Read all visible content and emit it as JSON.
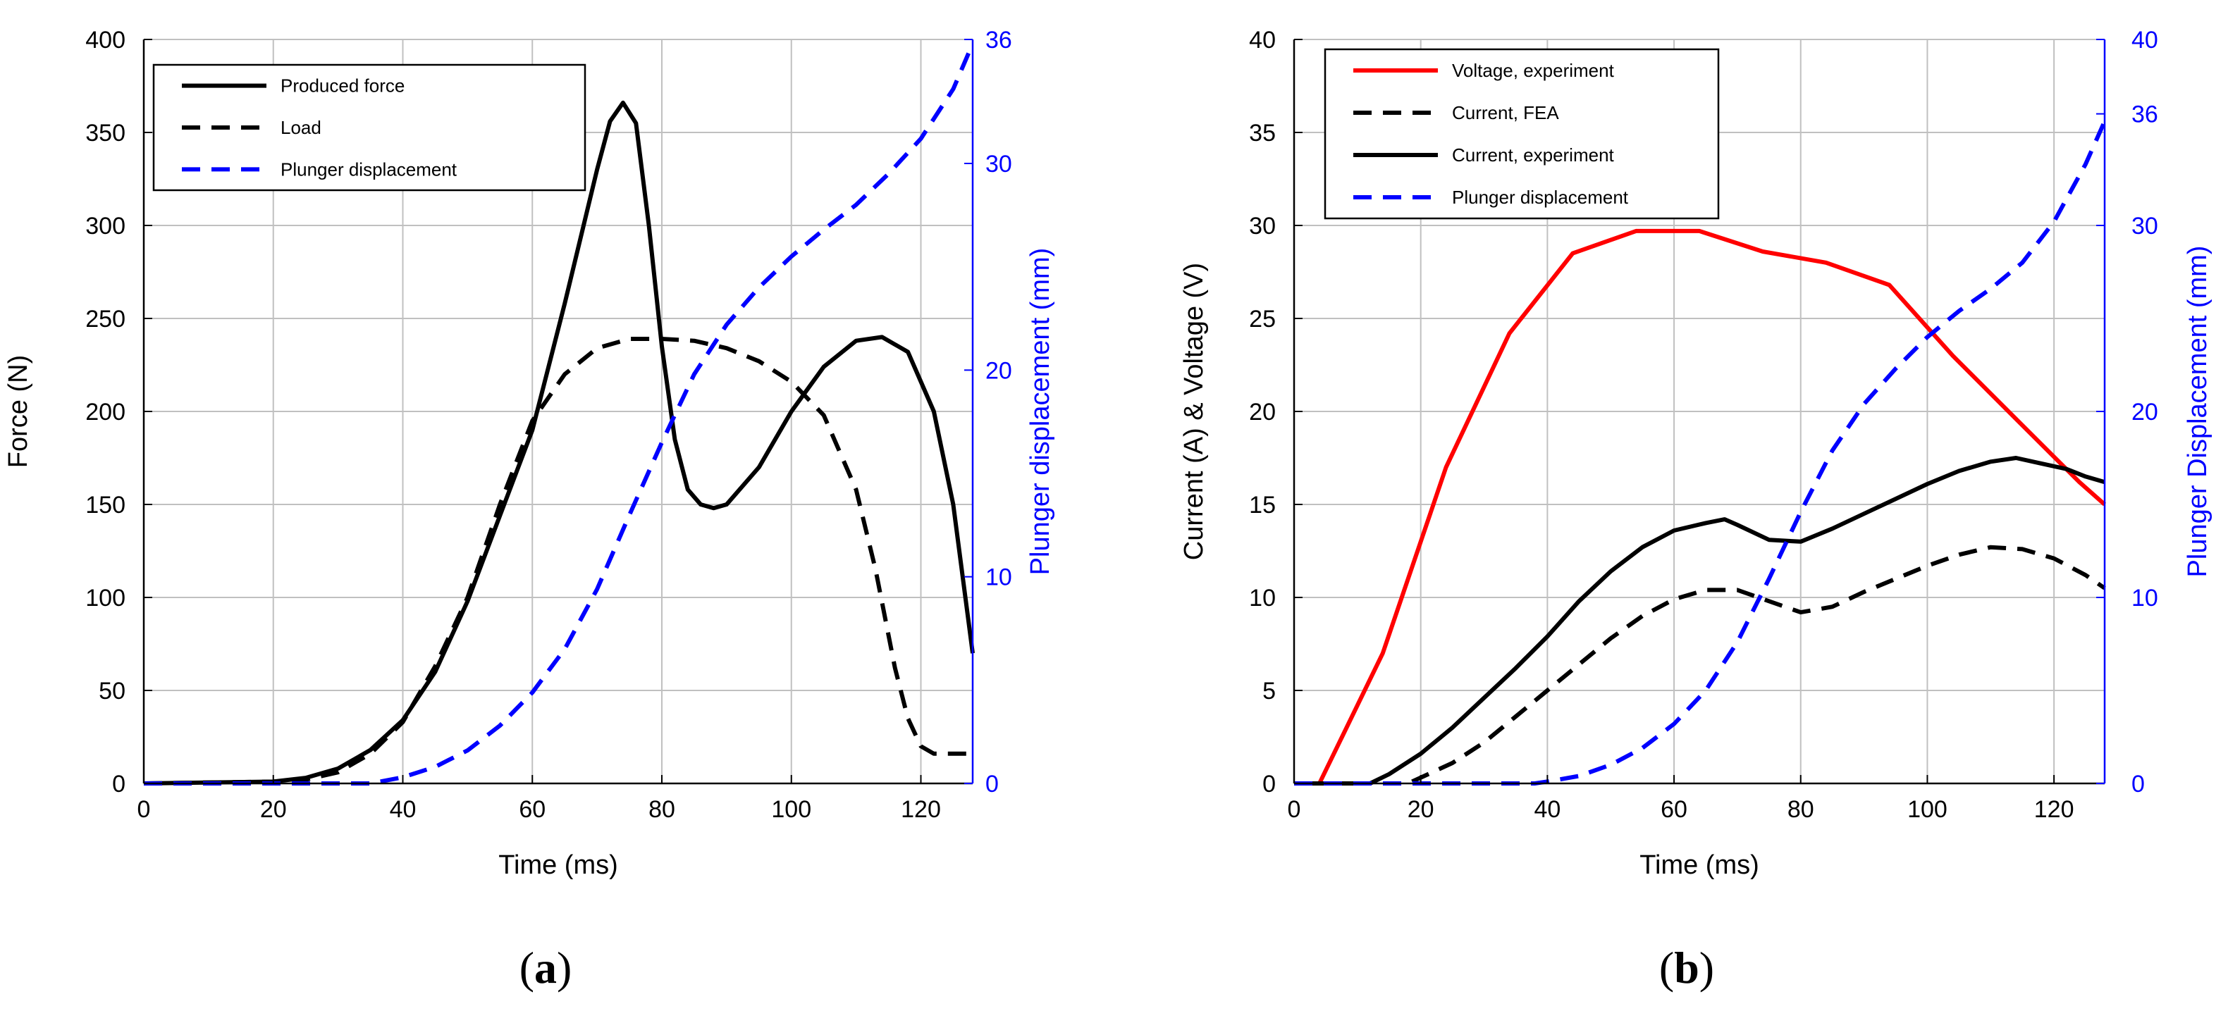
{
  "chart_data": [
    {
      "type": "line",
      "panel_label": "a",
      "xlabel": "Time (ms)",
      "ylabel": "Force (N)",
      "y2label": "Plunger displacement (mm)",
      "xlim": [
        0,
        128
      ],
      "ylim": [
        0,
        400
      ],
      "y2lim": [
        0,
        36
      ],
      "xticks": [
        "0",
        "20",
        "40",
        "60",
        "80",
        "100",
        "120"
      ],
      "yticks": [
        "0",
        "50",
        "100",
        "150",
        "200",
        "250",
        "300",
        "350",
        "400"
      ],
      "y2ticks": [
        "0",
        "10",
        "20",
        "30",
        "36"
      ],
      "legend_position": "top-left",
      "grid": true,
      "series": [
        {
          "name": "Produced force",
          "axis": "left",
          "color": "#000000",
          "dash": "solid",
          "x": [
            0,
            20,
            25,
            30,
            35,
            40,
            45,
            50,
            55,
            60,
            65,
            70,
            72,
            74,
            76,
            78,
            80,
            82,
            84,
            86,
            88,
            90,
            95,
            100,
            105,
            110,
            114,
            118,
            122,
            125,
            128
          ],
          "y": [
            0,
            1,
            3,
            8,
            18,
            34,
            60,
            98,
            144,
            190,
            258,
            330,
            356,
            366,
            355,
            300,
            235,
            185,
            158,
            150,
            148,
            150,
            170,
            200,
            224,
            238,
            240,
            232,
            200,
            150,
            70
          ]
        },
        {
          "name": "Load",
          "axis": "left",
          "color": "#000000",
          "dash": "dashed",
          "x": [
            0,
            20,
            25,
            30,
            35,
            40,
            45,
            50,
            55,
            60,
            65,
            70,
            75,
            80,
            85,
            90,
            95,
            100,
            105,
            110,
            113,
            116,
            118,
            120,
            122,
            124,
            128
          ],
          "y": [
            0,
            1,
            2,
            6,
            16,
            33,
            63,
            100,
            150,
            195,
            220,
            234,
            239,
            239,
            238,
            234,
            227,
            216,
            198,
            158,
            115,
            62,
            35,
            20,
            16,
            16,
            16
          ]
        },
        {
          "name": "Plunger displacement",
          "axis": "right",
          "color": "#0000ff",
          "dash": "dashed",
          "x": [
            0,
            35,
            40,
            45,
            50,
            55,
            60,
            65,
            70,
            75,
            80,
            85,
            90,
            95,
            100,
            105,
            110,
            115,
            120,
            125,
            128
          ],
          "y": [
            0,
            0,
            0.3,
            0.8,
            1.6,
            2.8,
            4.4,
            6.5,
            9.4,
            13.0,
            16.5,
            19.8,
            22.2,
            24.0,
            25.5,
            26.8,
            28.0,
            29.5,
            31.2,
            33.6,
            35.8
          ]
        }
      ]
    },
    {
      "type": "line",
      "panel_label": "b",
      "xlabel": "Time (ms)",
      "ylabel": "Current (A) & Voltage (V)",
      "y2label": "Plunger Displacement (mm)",
      "xlim": [
        0,
        128
      ],
      "ylim": [
        0,
        40
      ],
      "y2lim": [
        0,
        40
      ],
      "xticks": [
        "0",
        "20",
        "40",
        "60",
        "80",
        "100",
        "120"
      ],
      "yticks": [
        "0",
        "5",
        "10",
        "15",
        "20",
        "25",
        "30",
        "35",
        "40"
      ],
      "y2ticks": [
        "0",
        "10",
        "20",
        "30",
        "36",
        "40"
      ],
      "legend_position": "top-left",
      "grid": true,
      "series": [
        {
          "name": "Voltage, experiment",
          "axis": "left",
          "color": "#ff0000",
          "dash": "solid",
          "x": [
            0,
            4,
            14,
            24,
            34,
            44,
            54,
            64,
            74,
            84,
            94,
            104,
            114,
            124,
            128
          ],
          "y": [
            0,
            0,
            7,
            17,
            24.2,
            28.5,
            29.7,
            29.7,
            28.6,
            28.0,
            26.8,
            23.0,
            19.6,
            16.2,
            15.0
          ]
        },
        {
          "name": "Current, FEA",
          "axis": "left",
          "color": "#000000",
          "dash": "dashed",
          "x": [
            0,
            18,
            25,
            30,
            35,
            40,
            45,
            50,
            55,
            60,
            65,
            70,
            75,
            80,
            85,
            90,
            95,
            100,
            105,
            110,
            115,
            120,
            125,
            128
          ],
          "y": [
            0,
            0,
            1.1,
            2.2,
            3.6,
            5.0,
            6.4,
            7.8,
            9.0,
            9.9,
            10.4,
            10.4,
            9.8,
            9.2,
            9.5,
            10.3,
            11.0,
            11.7,
            12.3,
            12.7,
            12.6,
            12.1,
            11.2,
            10.5
          ]
        },
        {
          "name": "Current, experiment",
          "axis": "left",
          "color": "#000000",
          "dash": "solid",
          "x": [
            0,
            12,
            15,
            20,
            25,
            30,
            35,
            40,
            45,
            50,
            55,
            60,
            65,
            68,
            70,
            75,
            80,
            85,
            90,
            95,
            100,
            105,
            110,
            114,
            118,
            122,
            125,
            128
          ],
          "y": [
            0,
            0,
            0.5,
            1.6,
            3.0,
            4.6,
            6.2,
            7.9,
            9.8,
            11.4,
            12.7,
            13.6,
            14.0,
            14.2,
            13.9,
            13.1,
            13.0,
            13.7,
            14.5,
            15.3,
            16.1,
            16.8,
            17.3,
            17.5,
            17.2,
            16.9,
            16.5,
            16.2
          ]
        },
        {
          "name": "Plunger displacement",
          "axis": "right",
          "color": "#0000ff",
          "dash": "dashed",
          "x": [
            0,
            38,
            40,
            45,
            50,
            55,
            60,
            65,
            70,
            75,
            80,
            85,
            90,
            95,
            100,
            105,
            110,
            115,
            120,
            125,
            128
          ],
          "y": [
            0,
            0,
            0.1,
            0.4,
            1.0,
            1.9,
            3.2,
            5.0,
            7.6,
            11.0,
            14.6,
            17.9,
            20.4,
            22.3,
            24.0,
            25.4,
            26.6,
            28.0,
            30.2,
            33.3,
            35.6
          ]
        }
      ]
    }
  ]
}
